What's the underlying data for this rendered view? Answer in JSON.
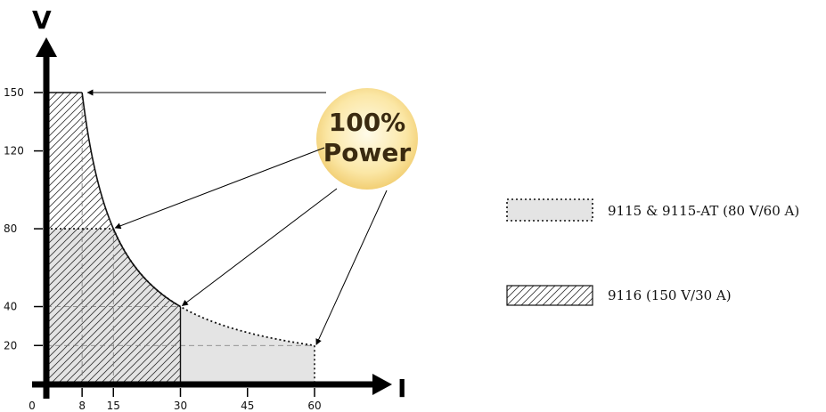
{
  "chart_data": {
    "type": "area",
    "title": "",
    "xlabel": "I",
    "ylabel": "V",
    "x_ticks": [
      0,
      8,
      15,
      30,
      45,
      60
    ],
    "y_ticks": [
      20,
      40,
      80,
      120,
      150
    ],
    "xlim": [
      0,
      66
    ],
    "ylim": [
      0,
      165
    ],
    "power_curve": {
      "power": 1200,
      "x_range": [
        8,
        60
      ]
    },
    "series": [
      {
        "name": "9115 & 9115-AT (80 V/60 A)",
        "style": "dotted-outline-gray-fill",
        "fill": "#e4e4e4",
        "max_voltage": 80,
        "max_current": 60,
        "boundary": [
          [
            0,
            80
          ],
          [
            15,
            80
          ],
          [
            20,
            60
          ],
          [
            30,
            40
          ],
          [
            40,
            30
          ],
          [
            50,
            24
          ],
          [
            60,
            20
          ],
          [
            60,
            0
          ],
          [
            0,
            0
          ]
        ]
      },
      {
        "name": "9116 (150 V/30 A)",
        "style": "hatched",
        "max_voltage": 150,
        "max_current": 30,
        "boundary": [
          [
            0,
            150
          ],
          [
            8,
            150
          ],
          [
            10,
            120
          ],
          [
            15,
            80
          ],
          [
            20,
            60
          ],
          [
            30,
            40
          ],
          [
            30,
            0
          ],
          [
            0,
            0
          ]
        ]
      }
    ],
    "max_power_points": [
      [
        8,
        150
      ],
      [
        15,
        80
      ],
      [
        30,
        40
      ],
      [
        60,
        20
      ]
    ],
    "annotation": {
      "line1": "100%",
      "line2": "Power",
      "color": "#fbe7a6"
    },
    "legend_position": "right"
  }
}
